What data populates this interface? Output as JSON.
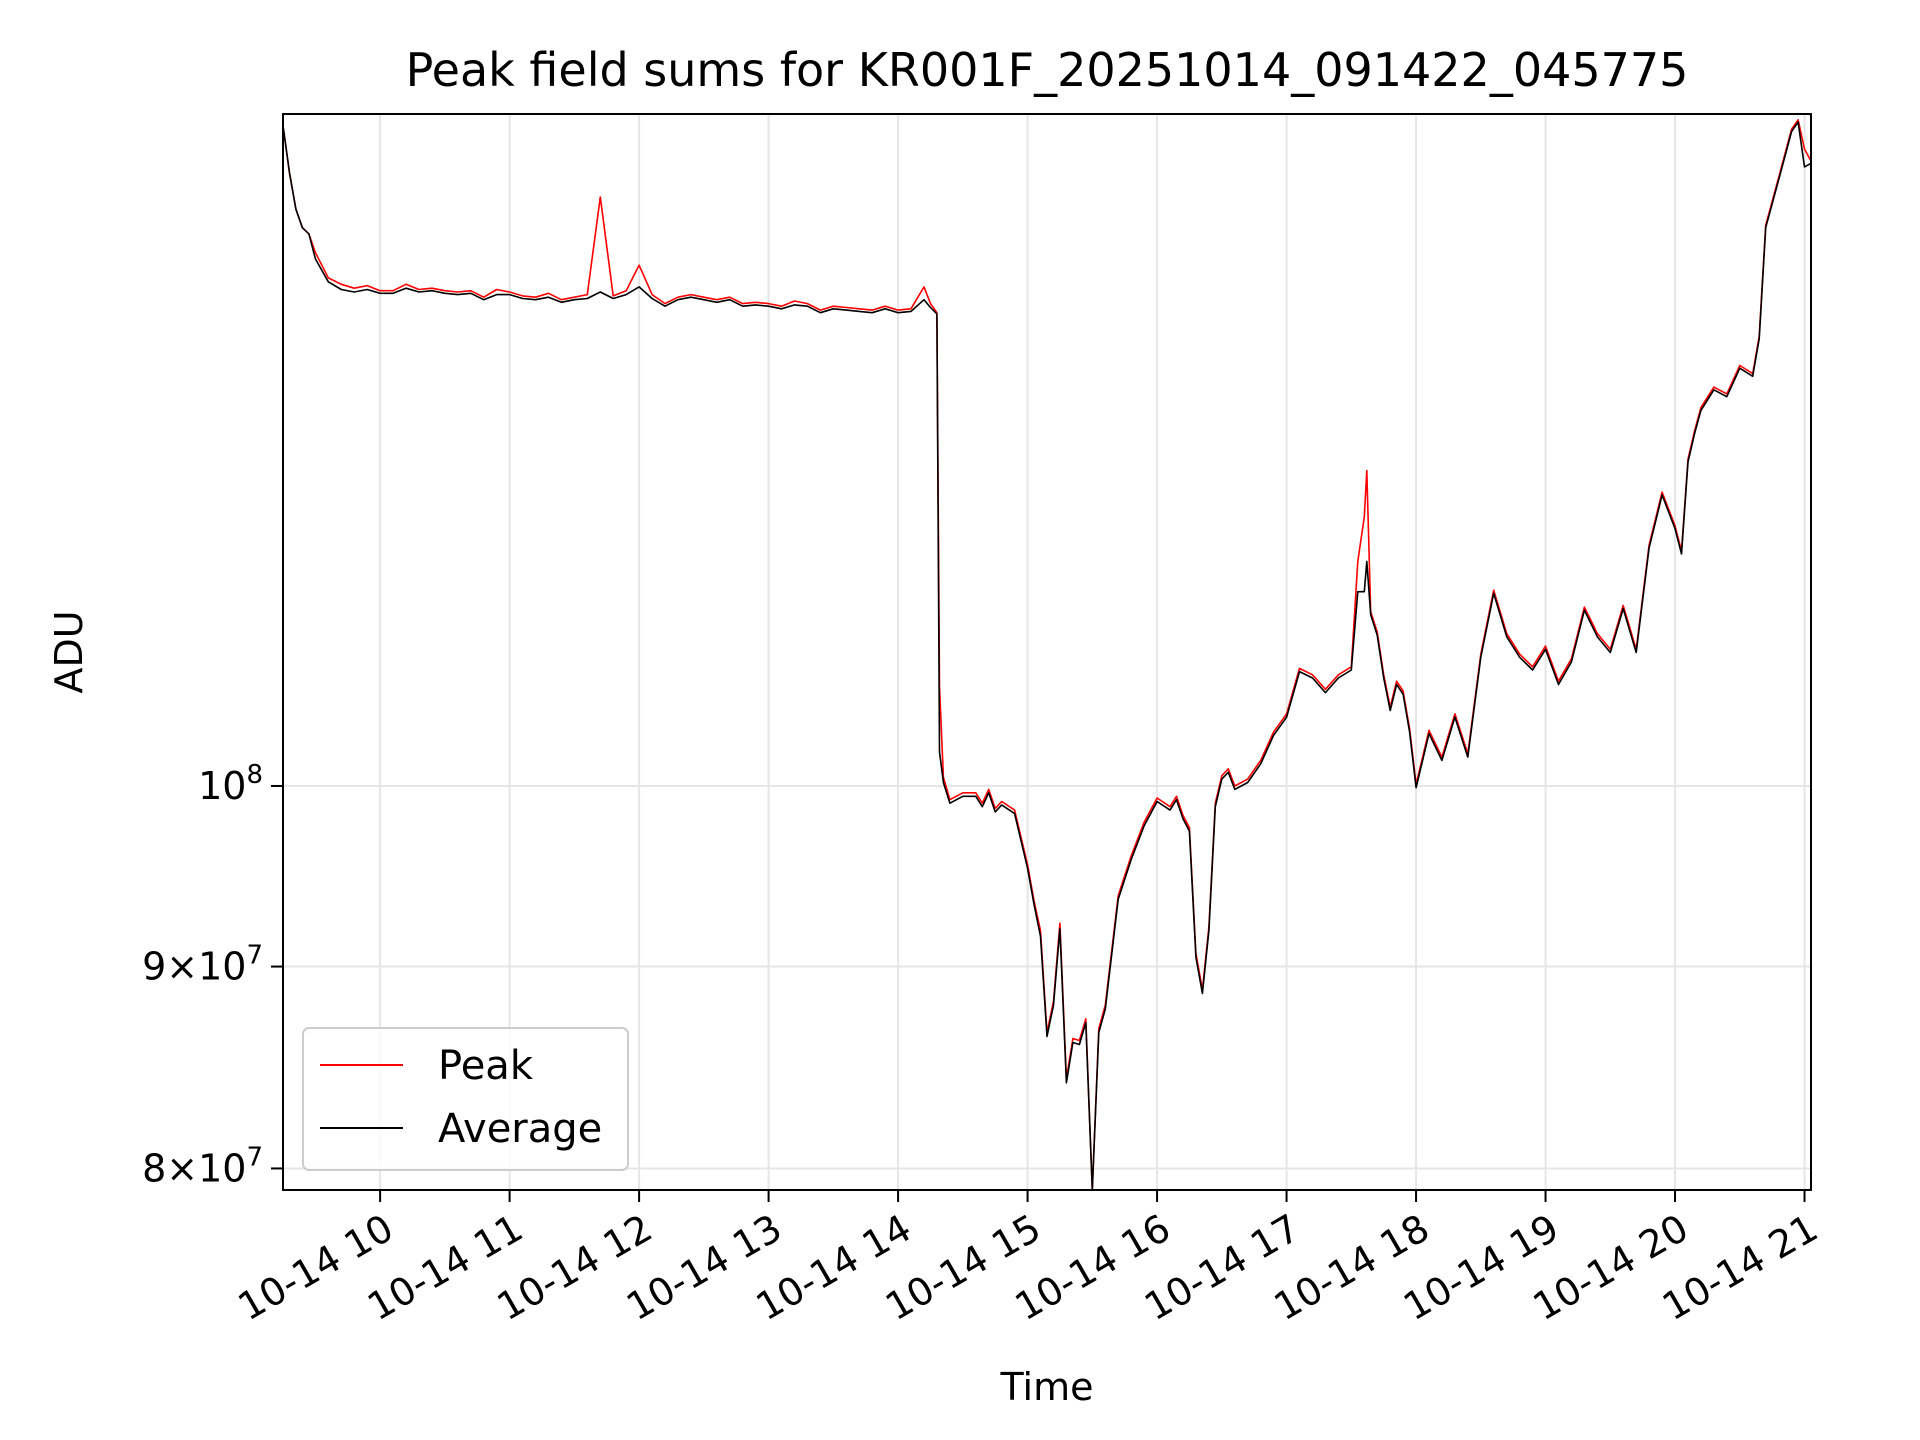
{
  "chart_data": {
    "type": "line",
    "title": "Peak field sums for KR001F_20251014_091422_045775",
    "xlabel": "Time",
    "ylabel": "ADU",
    "yscale": "log",
    "ylim": [
      79000000,
      148000000
    ],
    "xlim_hours": [
      9.25,
      21.05
    ],
    "grid": true,
    "x_ticks": [
      {
        "hour": 10,
        "label": "10-14 10"
      },
      {
        "hour": 11,
        "label": "10-14 11"
      },
      {
        "hour": 12,
        "label": "10-14 12"
      },
      {
        "hour": 13,
        "label": "10-14 13"
      },
      {
        "hour": 14,
        "label": "10-14 14"
      },
      {
        "hour": 15,
        "label": "10-14 15"
      },
      {
        "hour": 16,
        "label": "10-14 16"
      },
      {
        "hour": 17,
        "label": "10-14 17"
      },
      {
        "hour": 18,
        "label": "10-14 18"
      },
      {
        "hour": 19,
        "label": "10-14 19"
      },
      {
        "hour": 20,
        "label": "10-14 20"
      },
      {
        "hour": 21,
        "label": "10-14 21"
      }
    ],
    "y_ticks": [
      {
        "value": 80000000,
        "base": "8",
        "sep": "×",
        "power_base": "10",
        "exp": "7"
      },
      {
        "value": 90000000,
        "base": "9",
        "sep": "×",
        "power_base": "10",
        "exp": "7"
      },
      {
        "value": 100000000,
        "base": "",
        "sep": "",
        "power_base": "10",
        "exp": "8"
      }
    ],
    "legend": {
      "location": "lower-left"
    },
    "series": [
      {
        "name": "Peak",
        "color": "#ff0000",
        "x_hours": [
          9.25,
          9.3,
          9.35,
          9.4,
          9.45,
          9.5,
          9.6,
          9.7,
          9.8,
          9.9,
          10.0,
          10.1,
          10.2,
          10.3,
          10.4,
          10.5,
          10.6,
          10.7,
          10.8,
          10.9,
          11.0,
          11.1,
          11.2,
          11.3,
          11.4,
          11.5,
          11.6,
          11.7,
          11.8,
          11.9,
          12.0,
          12.1,
          12.2,
          12.3,
          12.4,
          12.5,
          12.6,
          12.7,
          12.8,
          12.9,
          13.0,
          13.1,
          13.2,
          13.3,
          13.4,
          13.5,
          13.6,
          13.7,
          13.8,
          13.9,
          14.0,
          14.1,
          14.2,
          14.25,
          14.3,
          14.32,
          14.35,
          14.4,
          14.5,
          14.6,
          14.65,
          14.7,
          14.75,
          14.8,
          14.9,
          15.0,
          15.05,
          15.1,
          15.15,
          15.2,
          15.25,
          15.3,
          15.35,
          15.4,
          15.45,
          15.5,
          15.55,
          15.6,
          15.7,
          15.8,
          15.9,
          16.0,
          16.1,
          16.15,
          16.2,
          16.25,
          16.3,
          16.35,
          16.4,
          16.45,
          16.5,
          16.55,
          16.6,
          16.7,
          16.8,
          16.9,
          17.0,
          17.1,
          17.2,
          17.3,
          17.4,
          17.5,
          17.55,
          17.6,
          17.62,
          17.65,
          17.7,
          17.75,
          17.8,
          17.85,
          17.9,
          17.95,
          18.0,
          18.1,
          18.2,
          18.3,
          18.4,
          18.5,
          18.6,
          18.7,
          18.8,
          18.9,
          19.0,
          19.1,
          19.2,
          19.3,
          19.4,
          19.5,
          19.6,
          19.7,
          19.8,
          19.9,
          20.0,
          20.05,
          20.1,
          20.15,
          20.2,
          20.3,
          20.4,
          20.5,
          20.6,
          20.65,
          20.7,
          20.8,
          20.9,
          20.95,
          21.0,
          21.05
        ],
        "values": [
          147000000,
          143000000,
          140000000,
          138500000,
          138000000,
          136500000,
          134500000,
          134000000,
          133700000,
          133900000,
          133500000,
          133500000,
          134000000,
          133600000,
          133700000,
          133500000,
          133400000,
          133500000,
          133000000,
          133600000,
          133400000,
          133100000,
          133000000,
          133300000,
          132800000,
          133000000,
          133200000,
          141000000,
          133100000,
          133500000,
          135500000,
          133200000,
          132500000,
          133000000,
          133200000,
          133000000,
          132800000,
          133000000,
          132500000,
          132600000,
          132500000,
          132300000,
          132700000,
          132500000,
          132000000,
          132300000,
          132200000,
          132100000,
          132000000,
          132300000,
          132000000,
          132100000,
          133800000,
          132500000,
          131800000,
          106000000,
          100500000,
          99200000,
          99600000,
          99600000,
          99000000,
          99800000,
          98700000,
          99100000,
          98600000,
          95500000,
          93500000,
          91900000,
          86600000,
          88200000,
          92300000,
          84300000,
          86300000,
          86200000,
          87300000,
          79000000,
          86800000,
          88000000,
          93800000,
          96000000,
          97900000,
          99300000,
          98800000,
          99400000,
          98300000,
          97600000,
          90700000,
          88800000,
          92100000,
          99000000,
          100600000,
          101000000,
          100000000,
          100400000,
          101500000,
          103200000,
          104300000,
          107100000,
          106700000,
          105800000,
          106700000,
          107200000,
          114000000,
          117000000,
          120200000,
          110700000,
          109400000,
          106700000,
          104700000,
          106300000,
          105700000,
          103400000,
          100100000,
          103300000,
          101700000,
          104300000,
          101900000,
          108000000,
          112100000,
          109300000,
          108000000,
          107200000,
          108500000,
          106300000,
          107700000,
          111000000,
          109300000,
          108300000,
          111100000,
          108300000,
          115100000,
          118700000,
          116400000,
          114700000,
          121000000,
          123000000,
          124700000,
          126200000,
          125700000,
          127800000,
          127200000,
          130000000,
          138700000,
          142600000,
          146700000,
          147500000,
          145000000,
          144000000
        ]
      },
      {
        "name": "Average",
        "color": "#000000",
        "x_hours": [
          9.25,
          9.3,
          9.35,
          9.4,
          9.45,
          9.5,
          9.6,
          9.7,
          9.8,
          9.9,
          10.0,
          10.1,
          10.2,
          10.3,
          10.4,
          10.5,
          10.6,
          10.7,
          10.8,
          10.9,
          11.0,
          11.1,
          11.2,
          11.3,
          11.4,
          11.5,
          11.6,
          11.7,
          11.8,
          11.9,
          12.0,
          12.1,
          12.2,
          12.3,
          12.4,
          12.5,
          12.6,
          12.7,
          12.8,
          12.9,
          13.0,
          13.1,
          13.2,
          13.3,
          13.4,
          13.5,
          13.6,
          13.7,
          13.8,
          13.9,
          14.0,
          14.1,
          14.2,
          14.25,
          14.3,
          14.32,
          14.35,
          14.4,
          14.5,
          14.6,
          14.65,
          14.7,
          14.75,
          14.8,
          14.9,
          15.0,
          15.05,
          15.1,
          15.15,
          15.2,
          15.25,
          15.3,
          15.35,
          15.4,
          15.45,
          15.5,
          15.55,
          15.6,
          15.7,
          15.8,
          15.9,
          16.0,
          16.1,
          16.15,
          16.2,
          16.25,
          16.3,
          16.35,
          16.4,
          16.45,
          16.5,
          16.55,
          16.6,
          16.7,
          16.8,
          16.9,
          17.0,
          17.1,
          17.2,
          17.3,
          17.4,
          17.5,
          17.55,
          17.6,
          17.62,
          17.65,
          17.7,
          17.75,
          17.8,
          17.85,
          17.9,
          17.95,
          18.0,
          18.1,
          18.2,
          18.3,
          18.4,
          18.5,
          18.6,
          18.7,
          18.8,
          18.9,
          19.0,
          19.1,
          19.2,
          19.3,
          19.4,
          19.5,
          19.6,
          19.7,
          19.8,
          19.9,
          20.0,
          20.05,
          20.1,
          20.15,
          20.2,
          20.3,
          20.4,
          20.5,
          20.6,
          20.65,
          20.7,
          20.8,
          20.9,
          20.95,
          21.0,
          21.05
        ],
        "values": [
          147000000,
          143000000,
          140000000,
          138500000,
          138000000,
          136000000,
          134200000,
          133600000,
          133400000,
          133600000,
          133300000,
          133300000,
          133700000,
          133400000,
          133500000,
          133300000,
          133200000,
          133300000,
          132800000,
          133200000,
          133200000,
          132900000,
          132800000,
          133000000,
          132600000,
          132800000,
          132900000,
          133400000,
          132900000,
          133200000,
          133800000,
          132900000,
          132300000,
          132800000,
          133000000,
          132800000,
          132600000,
          132800000,
          132300000,
          132400000,
          132300000,
          132100000,
          132400000,
          132300000,
          131800000,
          132100000,
          132000000,
          131900000,
          131800000,
          132100000,
          131800000,
          131900000,
          132800000,
          132200000,
          131700000,
          102000000,
          100200000,
          99000000,
          99400000,
          99400000,
          98800000,
          99600000,
          98500000,
          98900000,
          98400000,
          95300000,
          93300000,
          91600000,
          86400000,
          88000000,
          92000000,
          84100000,
          86100000,
          86000000,
          87100000,
          79000000,
          86600000,
          87800000,
          93600000,
          95800000,
          97700000,
          99100000,
          98600000,
          99200000,
          98100000,
          97400000,
          90500000,
          88600000,
          91900000,
          98800000,
          100400000,
          100800000,
          99800000,
          100200000,
          101300000,
          103000000,
          104100000,
          106900000,
          106500000,
          105600000,
          106500000,
          107000000,
          112000000,
          112000000,
          114000000,
          110500000,
          109200000,
          106500000,
          104500000,
          106100000,
          105500000,
          103200000,
          99900000,
          103100000,
          101500000,
          104100000,
          101700000,
          107800000,
          111900000,
          109100000,
          107800000,
          107000000,
          108300000,
          106100000,
          107500000,
          110800000,
          109100000,
          108100000,
          110900000,
          108100000,
          114900000,
          118500000,
          116200000,
          114500000,
          120800000,
          122800000,
          124500000,
          126000000,
          125500000,
          127600000,
          127000000,
          129800000,
          138500000,
          142400000,
          146500000,
          147300000,
          143500000,
          143800000
        ]
      }
    ]
  }
}
